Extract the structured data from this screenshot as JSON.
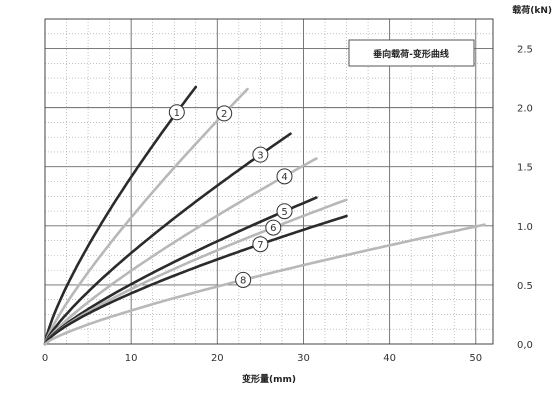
{
  "chart_data": {
    "type": "line",
    "legend": "垂向载荷-变形曲线",
    "xlabel": "变形量(mm)",
    "ylabel": "载荷(kN)",
    "xlim": [
      0,
      52
    ],
    "ylim": [
      0,
      2.75
    ],
    "x_ticks": [
      "0",
      "10",
      "20",
      "30",
      "40",
      "50"
    ],
    "y_ticks": [
      "0,0",
      "0.5",
      "1.0",
      "1.5",
      "2.0",
      "2.5"
    ],
    "grid": true,
    "legend_position": "top-right",
    "series": [
      {
        "label": "1",
        "color": "#2b2b2b",
        "k": 0.24,
        "p": 0.77,
        "x_end": 17.5,
        "label_x": 15.3
      },
      {
        "label": "2",
        "color": "#b8b8b8",
        "k": 0.162,
        "p": 0.82,
        "x_end": 23.5,
        "label_x": 20.8
      },
      {
        "label": "3",
        "color": "#2b2b2b",
        "k": 0.122,
        "p": 0.8,
        "x_end": 28.5,
        "label_x": 25.0
      },
      {
        "label": "4",
        "color": "#b8b8b8",
        "k": 0.096,
        "p": 0.81,
        "x_end": 31.5,
        "label_x": 27.8
      },
      {
        "label": "5",
        "color": "#2b2b2b",
        "k": 0.084,
        "p": 0.78,
        "x_end": 31.5,
        "label_x": 27.8
      },
      {
        "label": "6",
        "color": "#b8b8b8",
        "k": 0.079,
        "p": 0.77,
        "x_end": 35.0,
        "label_x": 26.5
      },
      {
        "label": "7",
        "color": "#2b2b2b",
        "k": 0.078,
        "p": 0.74,
        "x_end": 35.0,
        "label_x": 25.0
      },
      {
        "label": "8",
        "color": "#b8b8b8",
        "k": 0.047,
        "p": 0.78,
        "x_end": 51.0,
        "label_x": 23.0
      }
    ]
  }
}
